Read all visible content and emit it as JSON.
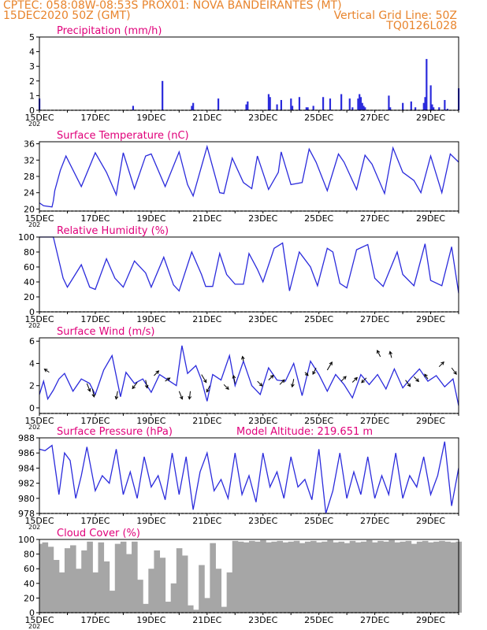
{
  "header": {
    "line1_left": "CPTEC:   058:08W-08:53S   PROX01: NOVA BANDEIRANTES (MT)",
    "line2_left": "15DEC2020 50Z (GMT)",
    "line2_right": "Vertical Grid Line: 50Z",
    "line3_right": "TQ0126L028"
  },
  "colors": {
    "header": "#e8842c",
    "title": "#e0007a",
    "series": "#2b2bdc",
    "cloud": "#a6a6a6",
    "arrow": "#000000",
    "frame": "#000000"
  },
  "x_labels": [
    "15DEC",
    "17DEC",
    "19DEC",
    "21DEC",
    "23DEC",
    "25DEC",
    "27DEC",
    "29DEC"
  ],
  "x_sub": "202",
  "chart_data": [
    {
      "id": "precip",
      "type": "bar",
      "title": "Precipitation (mm/h)",
      "ylim": [
        0,
        5
      ],
      "yticks": [
        0,
        1,
        2,
        3,
        4,
        5
      ],
      "x_unit": "days since 15DEC2020 00Z",
      "xlim": [
        0,
        15
      ],
      "x": [
        0.0,
        3.35,
        4.4,
        5.45,
        5.5,
        6.4,
        7.4,
        7.45,
        8.2,
        8.25,
        8.5,
        8.65,
        9.0,
        9.05,
        9.3,
        9.55,
        9.6,
        9.8,
        10.15,
        10.4,
        10.8,
        11.1,
        11.2,
        11.4,
        11.45,
        11.5,
        11.55,
        11.6,
        11.65,
        12.5,
        12.55,
        13.0,
        13.3,
        13.45,
        13.75,
        13.8,
        13.85,
        14.0,
        14.05,
        14.1,
        14.3,
        14.5,
        14.6,
        15.0
      ],
      "values": [
        0.8,
        0.3,
        2.0,
        0.3,
        0.5,
        0.8,
        0.4,
        0.6,
        1.1,
        0.9,
        0.4,
        0.7,
        0.8,
        0.3,
        0.9,
        0.2,
        0.2,
        0.3,
        0.9,
        0.8,
        1.1,
        0.8,
        0.2,
        0.8,
        1.1,
        0.9,
        0.5,
        0.3,
        0.2,
        1.0,
        0.2,
        0.5,
        0.6,
        0.2,
        0.5,
        0.9,
        3.5,
        1.7,
        0.4,
        0.2,
        0.2,
        0.7,
        0.1,
        1.5
      ]
    },
    {
      "id": "temp",
      "type": "line",
      "title": "Surface Temperature (nC)",
      "ylim": [
        19.5,
        36.5
      ],
      "yticks": [
        20,
        24,
        28,
        32,
        36
      ],
      "x": [
        0.0,
        0.15,
        0.45,
        0.5,
        0.55,
        0.75,
        0.95,
        1.5,
        2.0,
        2.4,
        2.75,
        3.0,
        3.4,
        3.8,
        4.0,
        4.5,
        5.0,
        5.3,
        5.5,
        6.0,
        6.45,
        6.6,
        6.9,
        7.3,
        7.6,
        7.8,
        8.2,
        8.55,
        8.65,
        9.0,
        9.4,
        9.65,
        9.9,
        10.3,
        10.7,
        10.9,
        11.35,
        11.65,
        11.9,
        12.35,
        12.65,
        13.0,
        13.4,
        13.65,
        14.0,
        14.4,
        14.7,
        15.0
      ],
      "values": [
        21.5,
        20.8,
        20.5,
        22.0,
        24.5,
        29.5,
        33.0,
        25.5,
        33.8,
        29.0,
        23.5,
        33.8,
        25.0,
        33.0,
        33.5,
        25.5,
        34.0,
        26.0,
        23.2,
        35.3,
        24.0,
        23.8,
        32.5,
        26.5,
        25.0,
        33.0,
        24.8,
        29.0,
        34.0,
        26.0,
        26.5,
        34.7,
        31.5,
        24.5,
        33.5,
        31.5,
        24.8,
        33.2,
        31.0,
        23.8,
        35.0,
        29.0,
        27.0,
        24.0,
        33.0,
        24.0,
        33.5,
        31.5
      ]
    },
    {
      "id": "rh",
      "type": "line",
      "title": "Relative Humidity (%)",
      "ylim": [
        0,
        100
      ],
      "yticks": [
        0,
        20,
        40,
        60,
        80,
        100
      ],
      "x": [
        0.0,
        0.5,
        0.85,
        1.0,
        1.5,
        1.8,
        2.0,
        2.4,
        2.7,
        3.0,
        3.4,
        3.8,
        4.0,
        4.45,
        4.8,
        5.0,
        5.45,
        5.8,
        5.95,
        6.2,
        6.45,
        6.7,
        7.0,
        7.3,
        7.5,
        7.8,
        8.0,
        8.4,
        8.7,
        8.95,
        9.3,
        9.7,
        9.95,
        10.3,
        10.5,
        10.75,
        11.0,
        11.35,
        11.75,
        12.0,
        12.3,
        12.8,
        13.0,
        13.4,
        13.8,
        14.0,
        14.4,
        14.75,
        15.0
      ],
      "values": [
        100,
        100,
        45,
        33,
        63,
        33,
        30,
        71,
        45,
        33,
        68,
        52,
        33,
        73,
        36,
        28,
        80,
        50,
        34,
        34,
        78,
        50,
        37,
        37,
        78,
        57,
        40,
        85,
        92,
        28,
        80,
        60,
        35,
        85,
        80,
        38,
        32,
        83,
        90,
        45,
        34,
        80,
        50,
        35,
        91,
        42,
        35,
        87,
        25
      ]
    },
    {
      "id": "wind",
      "type": "line",
      "title": "Surface Wind (m/s)",
      "ylim": [
        -0.5,
        6.3
      ],
      "yticks": [
        0,
        2,
        4,
        6
      ],
      "x": [
        0.0,
        0.15,
        0.3,
        0.5,
        0.7,
        0.9,
        1.2,
        1.5,
        1.8,
        2.0,
        2.3,
        2.6,
        2.9,
        3.1,
        3.4,
        3.7,
        4.0,
        4.3,
        4.6,
        4.9,
        5.1,
        5.3,
        5.6,
        5.8,
        6.0,
        6.2,
        6.5,
        6.8,
        7.0,
        7.3,
        7.6,
        7.9,
        8.2,
        8.5,
        8.8,
        9.1,
        9.4,
        9.7,
        10.0,
        10.3,
        10.6,
        10.9,
        11.2,
        11.5,
        11.8,
        12.1,
        12.4,
        12.7,
        13.0,
        13.3,
        13.6,
        13.9,
        14.2,
        14.5,
        14.8,
        15.0
      ],
      "values": [
        1.2,
        2.4,
        0.8,
        1.6,
        2.6,
        3.1,
        1.5,
        2.6,
        2.2,
        1.2,
        3.4,
        4.7,
        1.0,
        3.2,
        2.2,
        2.6,
        1.4,
        3.0,
        2.5,
        2.0,
        5.6,
        3.1,
        3.8,
        2.5,
        0.6,
        3.0,
        2.5,
        4.7,
        2.0,
        4.2,
        2.0,
        1.2,
        3.6,
        2.5,
        2.4,
        4.0,
        1.1,
        4.2,
        3.0,
        1.5,
        3.0,
        2.1,
        0.9,
        3.0,
        2.1,
        3.0,
        1.7,
        3.5,
        1.8,
        2.7,
        3.5,
        2.4,
        2.9,
        1.9,
        2.6,
        0.2
      ],
      "arrows_x": [
        0.35,
        1.7,
        1.9,
        2.8,
        3.5,
        3.8,
        4.1,
        4.5,
        5.0,
        5.4,
        5.8,
        6.1,
        6.6,
        7.0,
        7.3,
        7.8,
        8.2,
        8.6,
        9.1,
        9.5,
        9.9,
        10.3,
        10.8,
        11.2,
        11.7,
        12.2,
        12.6,
        13.1,
        13.4,
        13.9,
        14.3,
        14.75
      ],
      "arrows_y": [
        3.2,
        2.2,
        1.7,
        1.5,
        2.3,
        2.5,
        2.9,
        2.4,
        1.5,
        1.5,
        3.0,
        2.0,
        2.1,
        2.2,
        4.2,
        2.4,
        2.5,
        2.1,
        2.6,
        3.2,
        3.6,
        3.4,
        2.4,
        2.3,
        2.7,
        4.6,
        4.5,
        2.5,
        2.8,
        2.6,
        3.7,
        3.6
      ],
      "arrows_u": [
        -1.5,
        1.0,
        0.5,
        -0.5,
        -1.5,
        0.5,
        1.5,
        1.5,
        1.0,
        -0.3,
        1.5,
        -1.0,
        1.5,
        -0.5,
        -0.3,
        1.5,
        1.5,
        1.5,
        -0.5,
        1.0,
        -1.0,
        1.5,
        1.5,
        1.5,
        -1.5,
        -1.0,
        -0.5,
        1.5,
        1.5,
        -1.0,
        1.5,
        1.5
      ],
      "arrows_v": [
        1.0,
        -2.5,
        -2.5,
        -2.5,
        -2.0,
        -2.5,
        1.5,
        1.0,
        -2.5,
        -2.5,
        -2.5,
        -2.0,
        -1.5,
        2.5,
        1.5,
        -1.5,
        1.5,
        1.5,
        -2.5,
        -1.0,
        -2.0,
        2.5,
        1.5,
        1.5,
        -1.5,
        2.0,
        2.0,
        -2.0,
        -1.5,
        1.5,
        1.5,
        -2.0
      ]
    },
    {
      "id": "pres",
      "type": "line",
      "title": "Surface Pressure (hPa)",
      "extra": "Model Altitude: 219.651 m",
      "ylim": [
        978,
        988
      ],
      "yticks": [
        978,
        980,
        982,
        984,
        986,
        988
      ],
      "x": [
        0.0,
        0.2,
        0.45,
        0.7,
        0.9,
        1.1,
        1.3,
        1.5,
        1.7,
        2.0,
        2.25,
        2.5,
        2.75,
        3.0,
        3.25,
        3.5,
        3.75,
        4.0,
        4.25,
        4.5,
        4.75,
        5.0,
        5.25,
        5.5,
        5.75,
        6.0,
        6.25,
        6.5,
        6.75,
        7.0,
        7.25,
        7.5,
        7.75,
        8.0,
        8.25,
        8.5,
        8.75,
        9.0,
        9.25,
        9.5,
        9.75,
        10.0,
        10.25,
        10.5,
        10.75,
        11.0,
        11.25,
        11.5,
        11.75,
        12.0,
        12.25,
        12.5,
        12.75,
        13.0,
        13.25,
        13.5,
        13.75,
        14.0,
        14.25,
        14.5,
        14.75,
        15.0
      ],
      "values": [
        986.5,
        986.3,
        987.0,
        980.5,
        986.0,
        985.0,
        980.0,
        983.0,
        986.8,
        981.0,
        983.0,
        982.0,
        986.5,
        980.5,
        983.5,
        980.0,
        985.5,
        981.5,
        983.0,
        979.8,
        986.0,
        980.5,
        985.5,
        978.5,
        983.5,
        986.0,
        981.0,
        982.5,
        980.0,
        986.0,
        980.5,
        983.0,
        979.5,
        986.0,
        981.5,
        983.5,
        980.0,
        985.5,
        981.5,
        982.5,
        979.8,
        986.5,
        978.0,
        981.0,
        986.0,
        980.0,
        983.5,
        980.5,
        985.5,
        980.0,
        983.0,
        980.5,
        986.0,
        980.0,
        983.0,
        981.5,
        985.5,
        980.5,
        983.0,
        987.5,
        979.0,
        984.0
      ]
    },
    {
      "id": "cloud",
      "type": "bar",
      "title": "Cloud Cover (%)",
      "ylim": [
        0,
        100
      ],
      "yticks": [
        0,
        20,
        40,
        60,
        80,
        100
      ],
      "x": [
        0.0,
        0.2,
        0.4,
        0.6,
        0.8,
        1.0,
        1.2,
        1.4,
        1.6,
        1.8,
        2.0,
        2.2,
        2.4,
        2.6,
        2.8,
        3.0,
        3.2,
        3.4,
        3.6,
        3.8,
        4.0,
        4.2,
        4.4,
        4.6,
        4.8,
        5.0,
        5.2,
        5.4,
        5.6,
        5.8,
        6.0,
        6.2,
        6.4,
        6.6,
        6.8,
        7.0,
        7.2,
        7.4,
        7.6,
        7.8,
        8.0,
        8.2,
        8.4,
        8.6,
        8.8,
        9.0,
        9.2,
        9.4,
        9.6,
        9.8,
        10.0,
        10.2,
        10.4,
        10.6,
        10.8,
        11.0,
        11.2,
        11.4,
        11.6,
        11.8,
        12.0,
        12.2,
        12.4,
        12.6,
        12.8,
        13.0,
        13.2,
        13.4,
        13.6,
        13.8,
        14.0,
        14.2,
        14.4,
        14.6,
        14.8,
        15.0
      ],
      "values": [
        94,
        96,
        90,
        72,
        55,
        88,
        92,
        60,
        85,
        97,
        55,
        96,
        70,
        30,
        94,
        97,
        80,
        97,
        45,
        12,
        60,
        85,
        75,
        15,
        40,
        88,
        78,
        10,
        4,
        65,
        20,
        95,
        60,
        8,
        55,
        98,
        97,
        96,
        98,
        97,
        99,
        96,
        97,
        98,
        96,
        97,
        98,
        95,
        97,
        98,
        96,
        97,
        99,
        96,
        97,
        95,
        98,
        96,
        97,
        99,
        96,
        98,
        97,
        99,
        96,
        97,
        98,
        94,
        97,
        98,
        96,
        97,
        98,
        97,
        96,
        97
      ]
    }
  ]
}
